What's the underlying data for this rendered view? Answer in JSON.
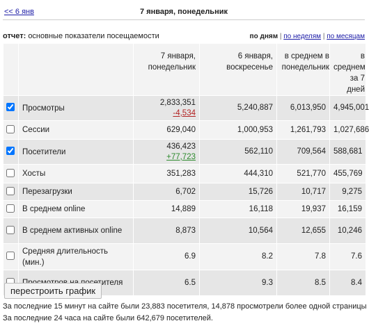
{
  "header": {
    "back_link": "<< 6 янв",
    "date": "7 января, понедельник"
  },
  "report": {
    "label": "отчет:",
    "title": "основные показатели посещаемости",
    "periods": [
      "по дням",
      "по неделям",
      "по месяцам"
    ],
    "active_period": 0
  },
  "table": {
    "columns": [
      "7 января, понедельник",
      "6 января, воскресенье",
      "в среднем в понедельник",
      "в среднем за 7 дней"
    ],
    "rows": [
      {
        "checked": true,
        "label": "Просмотры",
        "values": [
          "2,833,351",
          "5,240,887",
          "6,013,950",
          "4,945,001"
        ],
        "change": "-4,534",
        "change_color": "#b22222"
      },
      {
        "checked": false,
        "label": "Сессии",
        "values": [
          "629,040",
          "1,000,953",
          "1,261,793",
          "1,027,686"
        ]
      },
      {
        "checked": true,
        "label": "Посетители",
        "values": [
          "436,423",
          "562,110",
          "709,564",
          "588,681"
        ],
        "change": "+77,723",
        "change_color": "#2e8b2e"
      },
      {
        "checked": false,
        "label": "Хосты",
        "values": [
          "351,283",
          "444,310",
          "521,770",
          "455,769"
        ]
      },
      {
        "checked": false,
        "label": "Перезагрузки",
        "values": [
          "6,702",
          "15,726",
          "10,717",
          "9,275"
        ]
      },
      {
        "checked": false,
        "label": "В среднем online",
        "values": [
          "14,889",
          "16,118",
          "19,937",
          "16,159"
        ]
      },
      {
        "checked": false,
        "label": "В среднем активных online",
        "values": [
          "8,873",
          "10,564",
          "12,655",
          "10,246"
        ]
      },
      {
        "checked": false,
        "label": "Средняя длительность (мин.)",
        "values": [
          "6.9",
          "8.2",
          "7.8",
          "7.6"
        ]
      },
      {
        "checked": false,
        "label": "Просмотров на посетителя",
        "values": [
          "6.5",
          "9.3",
          "8.5",
          "8.4"
        ]
      }
    ]
  },
  "button": "перестроить график",
  "footer": [
    "За последние 15 минут на сайте были 23,883 посетителя, 14,878 просмотрели более одной страницы",
    "За последние 24 часа на сайте были 642,679 посетителей."
  ]
}
